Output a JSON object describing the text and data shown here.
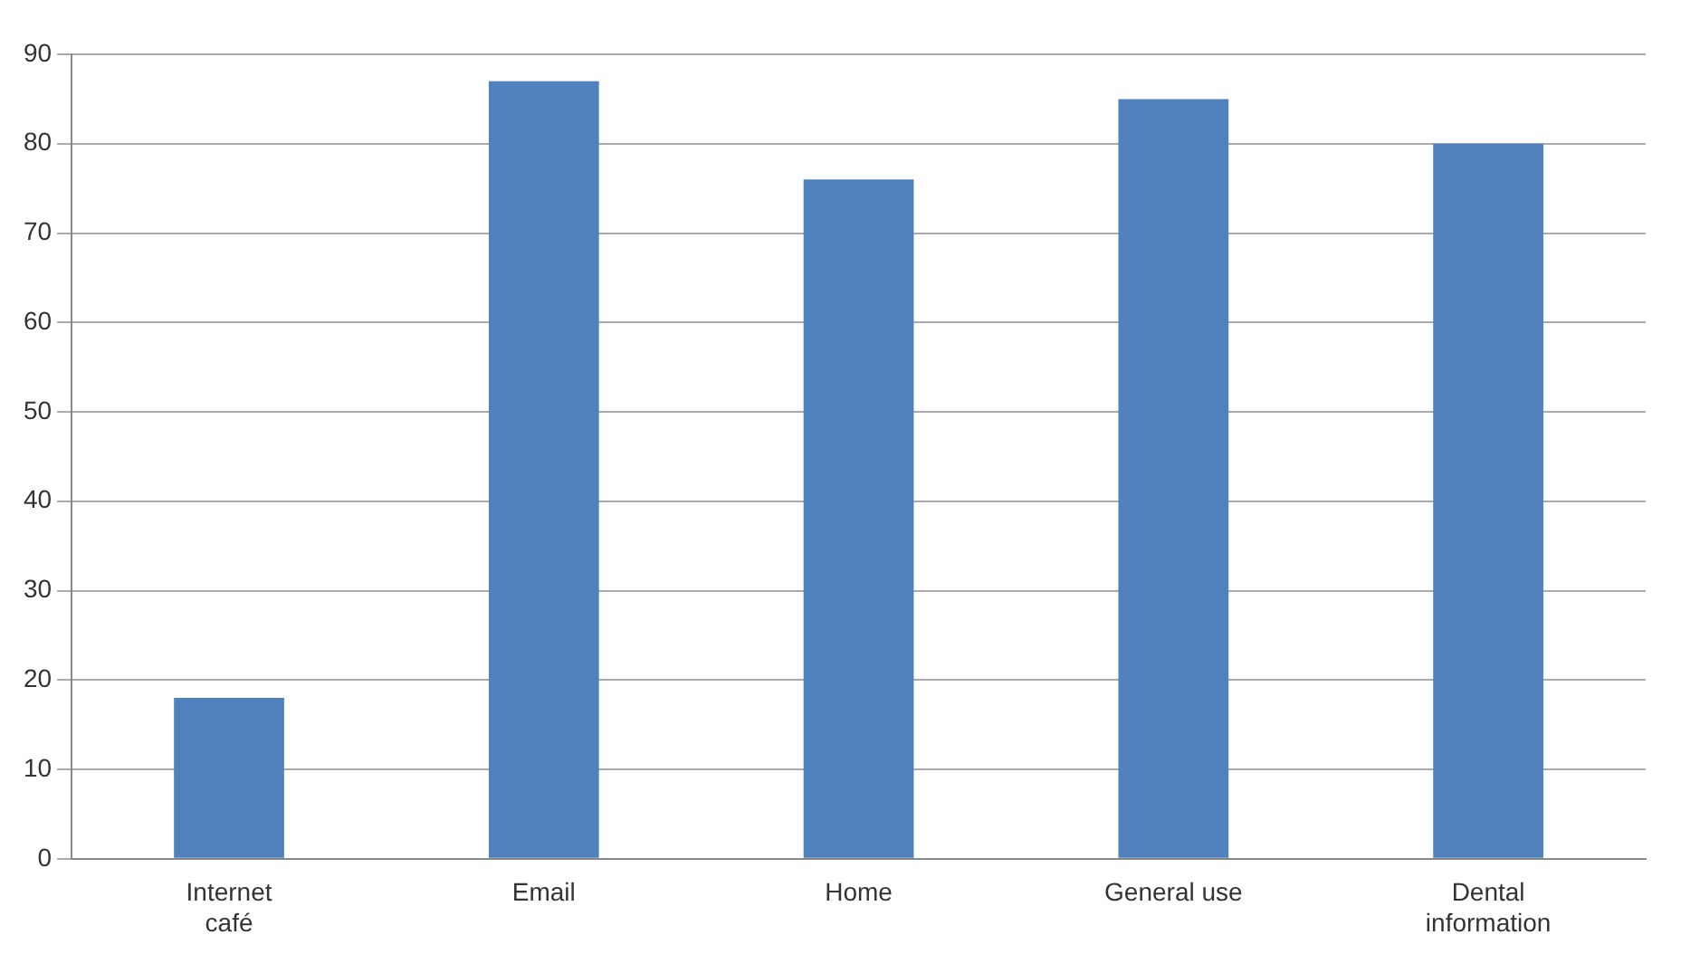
{
  "chart_data": {
    "type": "bar",
    "categories": [
      "Internet café",
      "Email",
      "Home",
      "General use",
      "Dental information"
    ],
    "values": [
      18,
      87,
      76,
      85,
      80
    ],
    "color": "#4f81bd",
    "ylim": [
      0,
      90
    ],
    "yticks": [
      0,
      10,
      20,
      30,
      40,
      50,
      60,
      70,
      80,
      90
    ],
    "grid": "y",
    "legend": false
  }
}
